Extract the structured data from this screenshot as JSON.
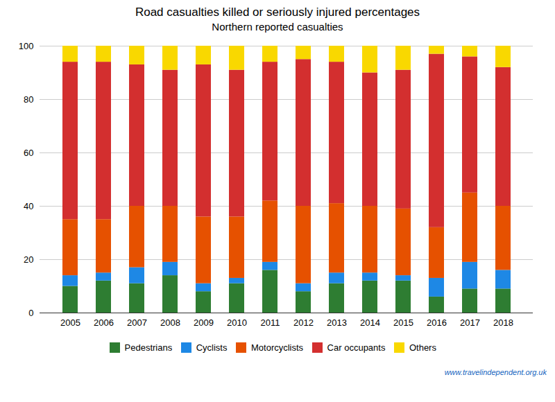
{
  "chart_data": {
    "type": "bar",
    "stacked": true,
    "title": "Road casualties killed or seriously injured percentages",
    "subtitle": "Northern reported casualties",
    "categories": [
      "2005",
      "2006",
      "2007",
      "2008",
      "2009",
      "2010",
      "2011",
      "2012",
      "2013",
      "2014",
      "2015",
      "2016",
      "2017",
      "2018"
    ],
    "series": [
      {
        "name": "Pedestrians",
        "color": "#2e7d32",
        "values": [
          10,
          12,
          11,
          14,
          8,
          11,
          16,
          8,
          11,
          12,
          12,
          6,
          9,
          9
        ]
      },
      {
        "name": "Cyclists",
        "color": "#1e88e5",
        "values": [
          4,
          3,
          6,
          5,
          3,
          2,
          3,
          3,
          4,
          3,
          2,
          7,
          10,
          7
        ]
      },
      {
        "name": "Motorcyclists",
        "color": "#e65100",
        "values": [
          21,
          20,
          23,
          21,
          25,
          23,
          23,
          29,
          26,
          25,
          25,
          19,
          26,
          24
        ]
      },
      {
        "name": "Car occupants",
        "color": "#d32f2f",
        "values": [
          59,
          59,
          53,
          51,
          57,
          55,
          52,
          55,
          53,
          50,
          52,
          65,
          51,
          52
        ]
      },
      {
        "name": "Others",
        "color": "#f9d800",
        "values": [
          6,
          6,
          7,
          9,
          7,
          9,
          6,
          5,
          6,
          10,
          9,
          3,
          4,
          8
        ]
      }
    ],
    "ylim": [
      0,
      100
    ],
    "yticks": [
      0,
      20,
      40,
      60,
      80,
      100
    ],
    "grid": true,
    "legend": "bottom",
    "annotations": [
      "www.travelindependent.org.uk"
    ]
  }
}
